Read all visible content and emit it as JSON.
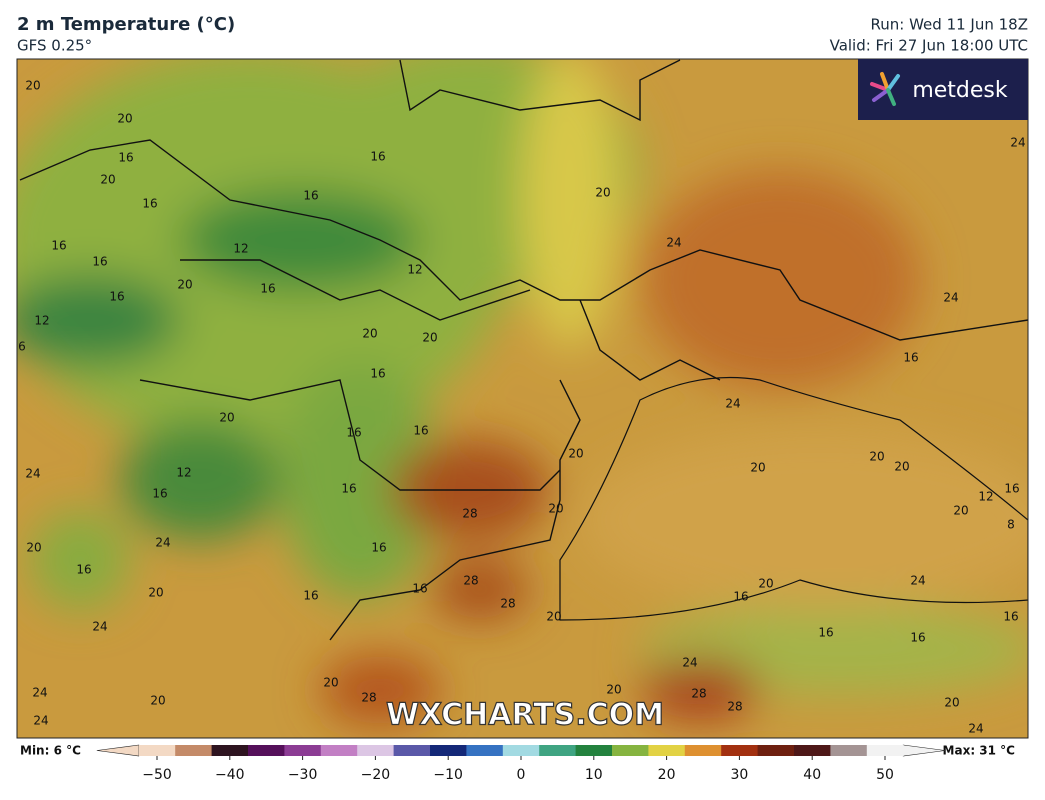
{
  "header": {
    "title": "2 m Temperature (°C)",
    "subtitle": "GFS 0.25°",
    "run": "Run: Wed 11 Jun 18Z",
    "valid": "Valid: Fri 27 Jun 18:00 UTC",
    "logo": "metdesk"
  },
  "map": {
    "watermark": "WXCHARTS.COM",
    "contour_labels": [
      20,
      20,
      16,
      16,
      20,
      16,
      16,
      20,
      24,
      16,
      16,
      12,
      12,
      24,
      20,
      16,
      16,
      12,
      24,
      20,
      20,
      6,
      16,
      16,
      20,
      16,
      16,
      24,
      20,
      24,
      12,
      20,
      20,
      20,
      16,
      16,
      28,
      20,
      16,
      12,
      20,
      8,
      20,
      24,
      16,
      16,
      28,
      16,
      24,
      20,
      16,
      20,
      16,
      28,
      24,
      20,
      16,
      16,
      16,
      24,
      20,
      20,
      28,
      24,
      20,
      28,
      20,
      24,
      28,
      24
    ]
  },
  "colorbar": {
    "min_label": "Min: 6 °C",
    "max_label": "Max: 31 °C",
    "lim": [
      -50,
      50
    ],
    "ticks": [
      -50,
      -40,
      -30,
      -20,
      -10,
      0,
      10,
      20,
      30,
      40,
      50
    ],
    "tick_labels": [
      "−50",
      "−40",
      "−30",
      "−20",
      "−10",
      "0",
      "10",
      "20",
      "30",
      "40",
      "50"
    ],
    "stops": [
      {
        "value": -50,
        "color": "#f3d9c4"
      },
      {
        "value": -45,
        "color": "#c48a68"
      },
      {
        "value": -40,
        "color": "#2e1420"
      },
      {
        "value": -35,
        "color": "#55105a"
      },
      {
        "value": -30,
        "color": "#8c3c94"
      },
      {
        "value": -25,
        "color": "#c27fc4"
      },
      {
        "value": -20,
        "color": "#dcc6e4"
      },
      {
        "value": -15,
        "color": "#5a58a8"
      },
      {
        "value": -10,
        "color": "#142878"
      },
      {
        "value": -5,
        "color": "#3572c2"
      },
      {
        "value": 0,
        "color": "#a2dae2"
      },
      {
        "value": 5,
        "color": "#3fa482"
      },
      {
        "value": 10,
        "color": "#23823e"
      },
      {
        "value": 15,
        "color": "#86b440"
      },
      {
        "value": 20,
        "color": "#e2d244"
      },
      {
        "value": 25,
        "color": "#de9030"
      },
      {
        "value": 30,
        "color": "#a23010"
      },
      {
        "value": 35,
        "color": "#6e2010"
      },
      {
        "value": 40,
        "color": "#4e1818"
      },
      {
        "value": 45,
        "color": "#a49494"
      },
      {
        "value": 50,
        "color": "#f2f2f2"
      }
    ]
  }
}
